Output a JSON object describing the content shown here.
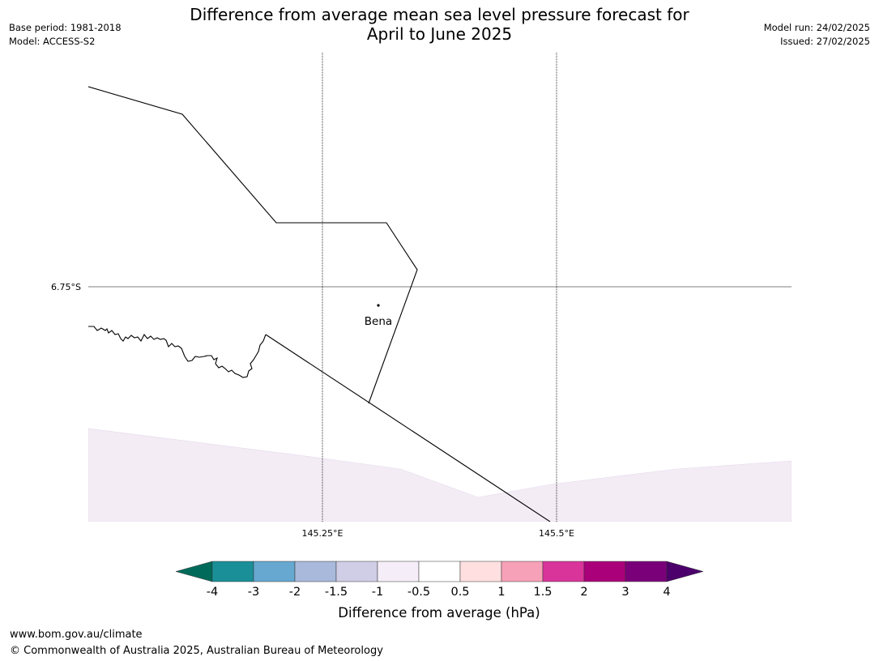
{
  "title": {
    "line1": "Difference from average mean sea level pressure forecast for",
    "line2": "April to June 2025"
  },
  "meta_left": {
    "base_period": "Base period: 1981-2018",
    "model": "Model: ACCESS-S2"
  },
  "meta_right": {
    "model_run": "Model run: 24/02/2025",
    "issued": "Issued: 27/02/2025"
  },
  "map": {
    "latitude_labels": [
      "6.75°S"
    ],
    "longitude_labels": [
      "145.25°E",
      "145.5°E"
    ],
    "place": {
      "name": "Bena"
    }
  },
  "legend": {
    "tick_labels": [
      "-4",
      "-3",
      "-2",
      "-1.5",
      "-1",
      "-0.5",
      "0.5",
      "1",
      "1.5",
      "2",
      "3",
      "4"
    ],
    "colors": [
      "#006a5a",
      "#1b8f98",
      "#66a8d0",
      "#a8b9db",
      "#d0cde6",
      "#f5eef8",
      "#ffffff",
      "#ffdfe0",
      "#f7a1b8",
      "#d9349a",
      "#aa007a",
      "#7a007a",
      "#4b006b"
    ],
    "label": "Difference from average (hPa)"
  },
  "footer": {
    "url": "www.bom.gov.au/climate",
    "copyright": "© Commonwealth of Australia 2025, Australian Bureau of Meteorology"
  }
}
